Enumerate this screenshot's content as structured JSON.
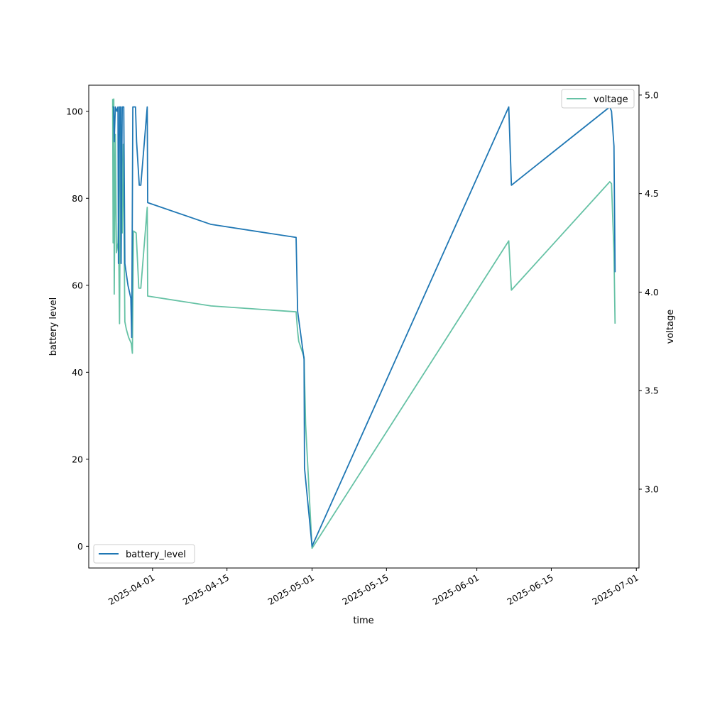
{
  "chart_data": {
    "type": "line",
    "title": "",
    "xlabel": "time",
    "ylabel": "battery level",
    "y2label": "voltage",
    "xlim": [
      "2025-03-20",
      "2025-07-01T12:00"
    ],
    "ylim": [
      -5,
      106
    ],
    "y2lim": [
      2.6,
      5.05
    ],
    "x_ticks": [
      "2025-04-01",
      "2025-04-15",
      "2025-05-01",
      "2025-05-15",
      "2025-06-01",
      "2025-06-15",
      "2025-07-01"
    ],
    "y_ticks": [
      0,
      20,
      40,
      60,
      80,
      100
    ],
    "y2_ticks": [
      "3.0",
      "3.5",
      "4.0",
      "4.5",
      "5.0"
    ],
    "grid": false,
    "series": [
      {
        "name": "battery_level",
        "axis": "left",
        "color": "#1f77b4",
        "legend_position": "lower-left",
        "points": [
          [
            "2025-03-24T12:00",
            101
          ],
          [
            "2025-03-24T16:00",
            101
          ],
          [
            "2025-03-24T19:00",
            93
          ],
          [
            "2025-03-25T00:00",
            101
          ],
          [
            "2025-03-25T07:00",
            100
          ],
          [
            "2025-03-25T12:00",
            101
          ],
          [
            "2025-03-25T14:00",
            65
          ],
          [
            "2025-03-25T19:00",
            101
          ],
          [
            "2025-03-26T00:00",
            101
          ],
          [
            "2025-03-26T02:00",
            65
          ],
          [
            "2025-03-26T07:00",
            101
          ],
          [
            "2025-03-26T14:00",
            101
          ],
          [
            "2025-03-26T19:00",
            65
          ],
          [
            "2025-03-27T09:00",
            60
          ],
          [
            "2025-03-27T22:00",
            57
          ],
          [
            "2025-03-28T02:00",
            48
          ],
          [
            "2025-03-28T07:00",
            101
          ],
          [
            "2025-03-28T12:00",
            101
          ],
          [
            "2025-03-28T19:00",
            101
          ],
          [
            "2025-03-29T00:00",
            93
          ],
          [
            "2025-03-29T12:00",
            83
          ],
          [
            "2025-03-29T19:00",
            83
          ],
          [
            "2025-03-31T00:00",
            101
          ],
          [
            "2025-03-31T02:00",
            79
          ],
          [
            "2025-04-12T00:00",
            74
          ],
          [
            "2025-04-28T00:00",
            71
          ],
          [
            "2025-04-28T07:00",
            54
          ],
          [
            "2025-04-29T12:00",
            43
          ],
          [
            "2025-04-29T14:00",
            18
          ],
          [
            "2025-05-01T00:00",
            0
          ],
          [
            "2025-06-07T00:00",
            101
          ],
          [
            "2025-06-07T12:00",
            83
          ],
          [
            "2025-06-26T00:00",
            101
          ],
          [
            "2025-06-26T08:00",
            100
          ],
          [
            "2025-06-26T19:00",
            92
          ],
          [
            "2025-06-27T00:00",
            63
          ]
        ]
      },
      {
        "name": "voltage",
        "axis": "right",
        "color": "#66c2a5",
        "legend_position": "upper-right",
        "points": [
          [
            "2025-03-24T12:00",
            4.98
          ],
          [
            "2025-03-24T14:00",
            4.25
          ],
          [
            "2025-03-24T17:00",
            4.98
          ],
          [
            "2025-03-24T19:00",
            3.99
          ],
          [
            "2025-03-25T00:00",
            4.8
          ],
          [
            "2025-03-25T05:00",
            4.2
          ],
          [
            "2025-03-25T12:00",
            4.25
          ],
          [
            "2025-03-25T14:00",
            4.35
          ],
          [
            "2025-03-25T19:00",
            3.84
          ],
          [
            "2025-03-26T00:00",
            4.85
          ],
          [
            "2025-03-26T07:00",
            4.3
          ],
          [
            "2025-03-26T12:00",
            4.75
          ],
          [
            "2025-03-26T19:00",
            3.85
          ],
          [
            "2025-03-27T02:00",
            3.81
          ],
          [
            "2025-03-27T12:00",
            3.77
          ],
          [
            "2025-03-28T00:00",
            3.74
          ],
          [
            "2025-03-28T05:00",
            3.69
          ],
          [
            "2025-03-28T10:00",
            4.31
          ],
          [
            "2025-03-28T22:00",
            4.3
          ],
          [
            "2025-03-29T10:00",
            4.02
          ],
          [
            "2025-03-29T19:00",
            4.02
          ],
          [
            "2025-03-31T00:00",
            4.43
          ],
          [
            "2025-03-31T02:00",
            3.98
          ],
          [
            "2025-04-12T00:00",
            3.93
          ],
          [
            "2025-04-28T00:00",
            3.9
          ],
          [
            "2025-04-28T07:00",
            3.8
          ],
          [
            "2025-04-28T12:00",
            3.75
          ],
          [
            "2025-04-29T12:00",
            3.67
          ],
          [
            "2025-04-29T19:00",
            3.33
          ],
          [
            "2025-05-01T00:00",
            2.7
          ],
          [
            "2025-06-07T00:00",
            4.26
          ],
          [
            "2025-06-07T12:00",
            4.01
          ],
          [
            "2025-06-26T00:00",
            4.56
          ],
          [
            "2025-06-26T08:00",
            4.55
          ],
          [
            "2025-06-26T19:00",
            4.2
          ],
          [
            "2025-06-27T00:00",
            3.84
          ]
        ]
      }
    ]
  }
}
